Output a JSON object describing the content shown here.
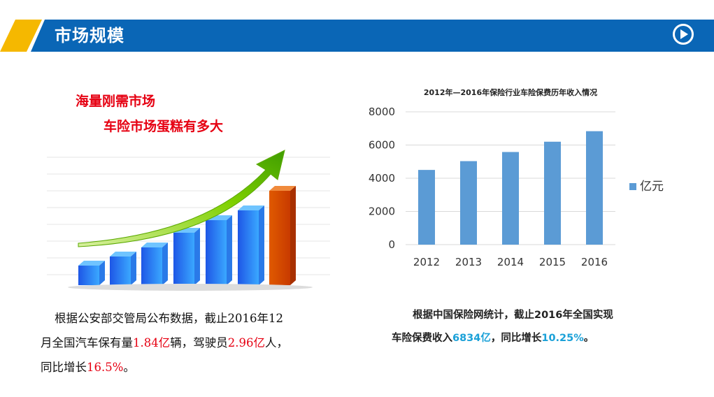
{
  "header": {
    "title": "市场规模",
    "play_icon": "play-circle-icon"
  },
  "colors": {
    "header_blue": "#0a66b6",
    "header_accent": "#f5b800",
    "bar_blue": "#5b9bd5",
    "highlight_red": "#e60012",
    "highlight_cyan": "#1ba1d8"
  },
  "left": {
    "slogan_line1": "海量刚需市场",
    "slogan_line2": "车险市场蛋糕有多大",
    "illustration": "growth-bar-chart-with-arrow-illustration",
    "text": {
      "p1": "根据公安部交管局公布数据，截止2016年12",
      "p2": "月全国汽车保有量",
      "v1": "1.84亿",
      "p3": "辆，驾驶员",
      "v2": "2.96亿",
      "p4": "人，",
      "p5": "同比增长",
      "v3": "16.5%",
      "p6": "。"
    }
  },
  "chart_data": {
    "type": "bar",
    "title": "2012年—2016年保险行业车险保费历年收入情况",
    "categories": [
      "2012",
      "2013",
      "2014",
      "2015",
      "2016"
    ],
    "series": [
      {
        "name": "亿元",
        "values": [
          4500,
          5030,
          5580,
          6200,
          6834
        ]
      }
    ],
    "ylim": [
      0,
      8000
    ],
    "yticks": [
      "0",
      "2000",
      "4000",
      "6000",
      "8000"
    ],
    "grid": true,
    "legend": "right"
  },
  "right": {
    "text": {
      "line1": "根据中国保险网统计，截止2016年全国实现",
      "p1": "车险保费收入",
      "v1": "6834亿",
      "p2": "，同比增长",
      "v2": "10.25%",
      "p3": "。"
    }
  }
}
